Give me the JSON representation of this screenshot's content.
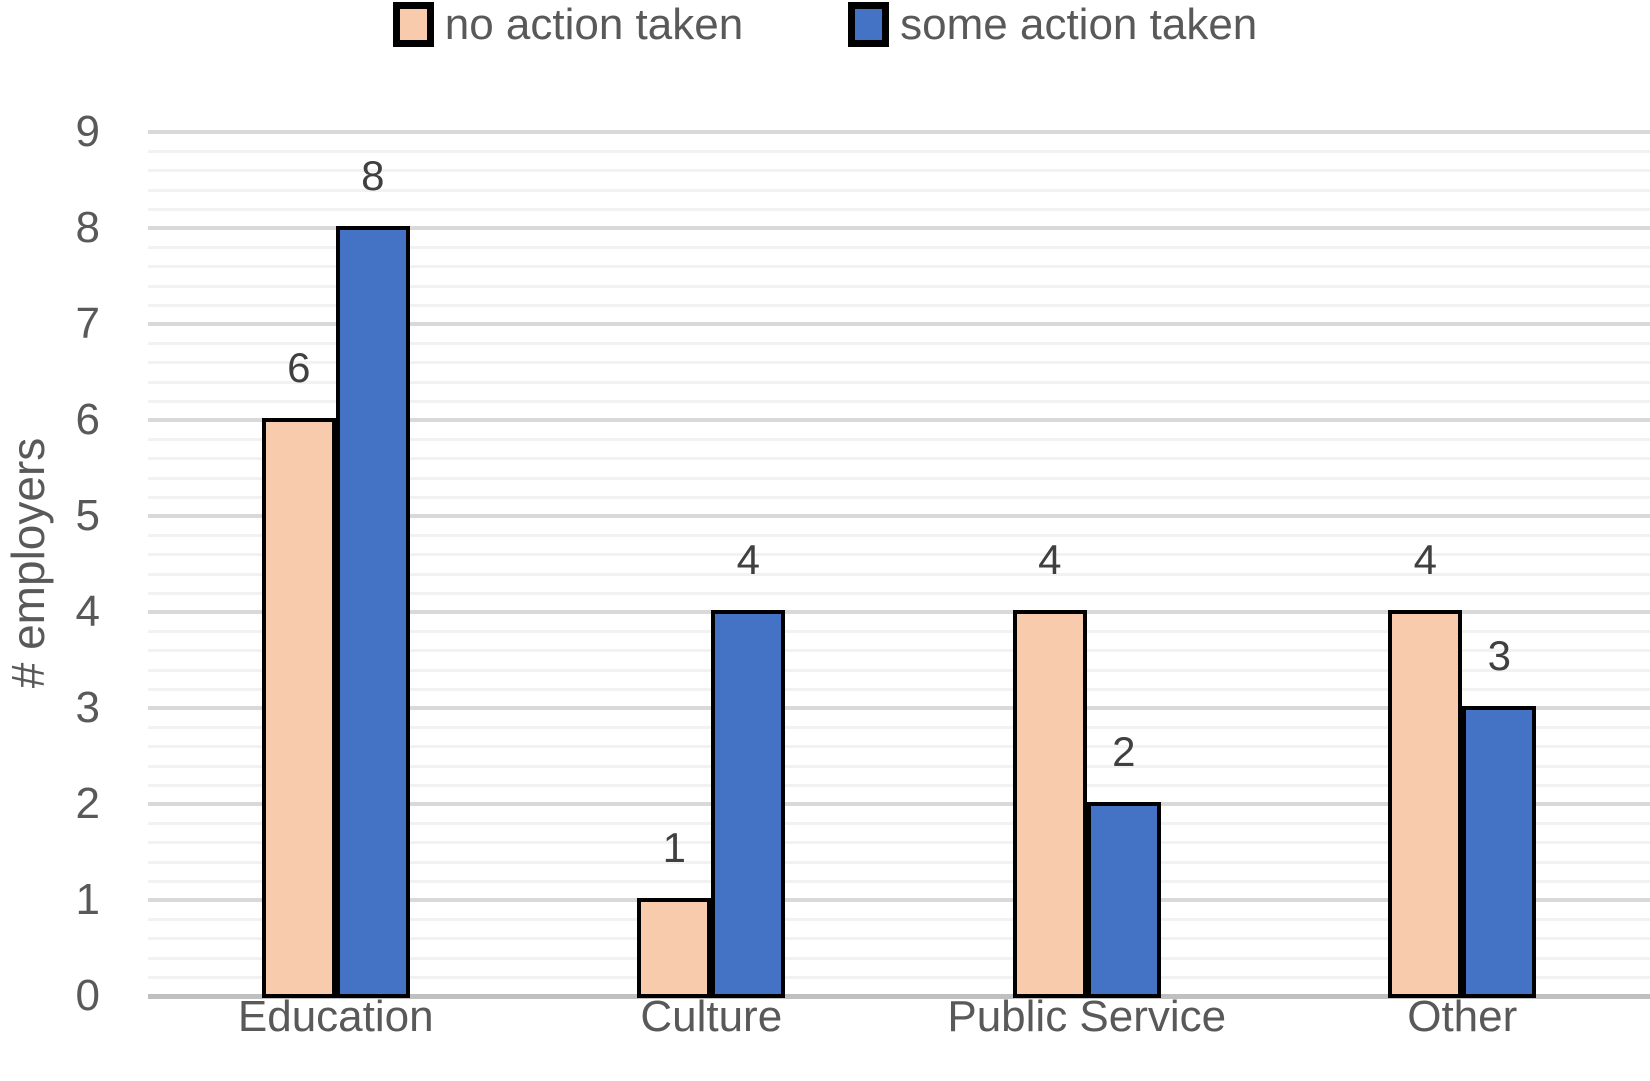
{
  "chart_data": {
    "type": "bar",
    "title": "",
    "categories": [
      "Education",
      "Culture",
      "Public Service",
      "Other"
    ],
    "series": [
      {
        "name": "no action taken",
        "color": "#F8CBAD",
        "values": [
          6,
          1,
          4,
          4
        ]
      },
      {
        "name": "some action taken",
        "color": "#4472C4",
        "values": [
          8,
          4,
          2,
          3
        ]
      }
    ],
    "data_labels": [
      [
        6,
        1,
        4,
        4
      ],
      [
        8,
        4,
        2,
        3
      ]
    ],
    "xlabel": "",
    "ylabel": "# employers",
    "ylim": [
      0,
      9
    ],
    "y_ticks": [
      "0",
      "1",
      "2",
      "3",
      "4",
      "5",
      "6",
      "7",
      "8",
      "9"
    ],
    "minor_grid_step": 0.2,
    "grid": true,
    "legend_position": "top",
    "style": {
      "bar_border_color": "#000000",
      "major_grid_color": "#d9d9d9",
      "minor_grid_color": "#f2f2f2",
      "axis_line_color": "#c0c0c0",
      "text_color": "#595959",
      "data_label_color": "#404040",
      "background": "#ffffff"
    }
  }
}
